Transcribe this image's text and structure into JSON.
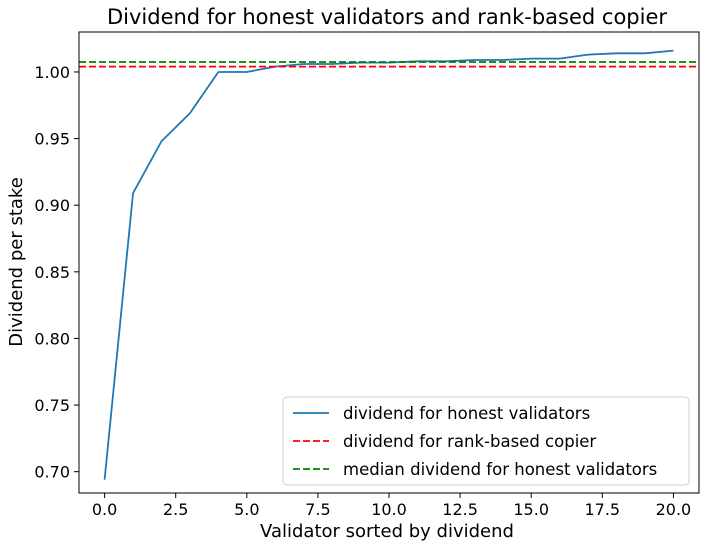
{
  "chart_data": {
    "type": "line",
    "title": "Dividend for honest validators and rank-based copier",
    "xlabel": "Validator sorted by dividend",
    "ylabel": "Dividend per stake",
    "xlim": [
      -0.9,
      20.9
    ],
    "ylim": [
      0.684,
      1.03
    ],
    "xticks": [
      0,
      2.5,
      5,
      7.5,
      10,
      12.5,
      15,
      17.5,
      20
    ],
    "xtick_labels": [
      "0.0",
      "2.5",
      "5.0",
      "7.5",
      "10.0",
      "12.5",
      "15.0",
      "17.5",
      "20.0"
    ],
    "yticks": [
      0.7,
      0.75,
      0.8,
      0.85,
      0.9,
      0.95,
      1.0
    ],
    "ytick_labels": [
      "0.70",
      "0.75",
      "0.80",
      "0.85",
      "0.90",
      "0.95",
      "1.00"
    ],
    "grid": false,
    "legend_position": "lower-right",
    "series": [
      {
        "name": "dividend for honest validators",
        "kind": "line",
        "color": "#1f77b4",
        "x": [
          0,
          1,
          2,
          3,
          4,
          5,
          6,
          7,
          8,
          9,
          10,
          11,
          12,
          13,
          14,
          15,
          16,
          17,
          18,
          19,
          20
        ],
        "y": [
          0.694,
          0.909,
          0.948,
          0.969,
          1.0,
          1.0,
          1.004,
          1.006,
          1.006,
          1.007,
          1.007,
          1.008,
          1.008,
          1.009,
          1.009,
          1.01,
          1.01,
          1.013,
          1.014,
          1.014,
          1.016
        ]
      },
      {
        "name": "dividend for rank-based copier",
        "kind": "hline",
        "color": "#ff0000",
        "dashed": true,
        "y": 1.004
      },
      {
        "name": "median dividend for honest validators",
        "kind": "hline",
        "color": "#008000",
        "dashed": true,
        "y": 1.0075
      }
    ]
  }
}
